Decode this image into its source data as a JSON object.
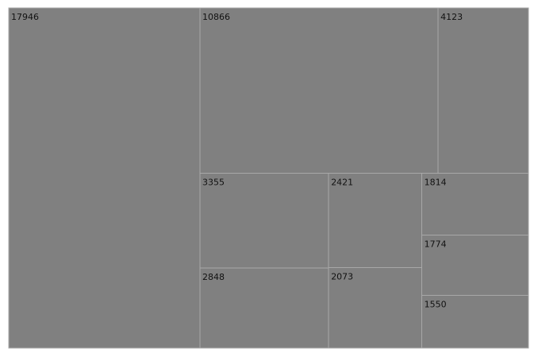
{
  "chart_data": {
    "type": "treemap",
    "colors": {
      "tile_fill": "#808080",
      "tile_border": "#a8a8a8",
      "label": "#111111"
    },
    "tiles": [
      {
        "label": "17946",
        "value": 17946
      },
      {
        "label": "10866",
        "value": 10866
      },
      {
        "label": "4123",
        "value": 4123
      },
      {
        "label": "3355",
        "value": 3355
      },
      {
        "label": "2848",
        "value": 2848
      },
      {
        "label": "2421",
        "value": 2421
      },
      {
        "label": "2073",
        "value": 2073
      },
      {
        "label": "1814",
        "value": 1814
      },
      {
        "label": "1774",
        "value": 1774
      },
      {
        "label": "1550",
        "value": 1550
      }
    ]
  }
}
